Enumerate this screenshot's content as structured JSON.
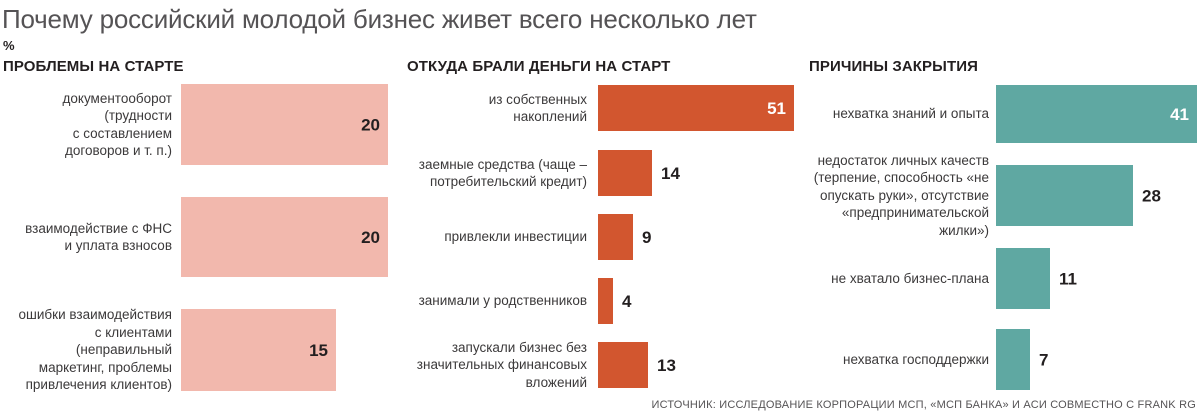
{
  "title": "Почему российский молодой бизнес живет всего несколько лет",
  "unit": "%",
  "source": "ИСТОЧНИК: ИССЛЕДОВАНИЕ КОРПОРАЦИИ МСП, «МСП БАНКА» И АСИ СОВМЕСТНО С FRANK RG",
  "colors": {
    "pink": "#f2b8ad",
    "orange": "#d2562f",
    "teal": "#5fa8a2",
    "text": "#231f20"
  },
  "chart_data": [
    {
      "type": "bar",
      "orientation": "horizontal",
      "title": "ПРОБЛЕМЫ НА СТАРТЕ",
      "categories": [
        [
          "документооборот",
          "(трудности",
          "с составлением",
          "договоров и т. п.)"
        ],
        [
          "взаимодействие с ФНС",
          "и уплата взносов"
        ],
        [
          "ошибки взаимодействия",
          "с клиентами",
          "(неправильный",
          "маркетинг, проблемы",
          "привлечения клиентов)"
        ]
      ],
      "values": [
        20,
        20,
        15
      ],
      "xlabel": "",
      "ylabel": "",
      "xlim": [
        0,
        20
      ],
      "grid": false,
      "color": "pink"
    },
    {
      "type": "bar",
      "orientation": "horizontal",
      "title": "ОТКУДА БРАЛИ ДЕНЬГИ НА СТАРТ",
      "categories": [
        [
          "из собственных",
          "накоплений"
        ],
        [
          "заемные средства (чаще –",
          "потребительский кредит)"
        ],
        [
          "привлекли инвестиции"
        ],
        [
          "занимали у родственников"
        ],
        [
          "запускали бизнес без",
          "значительных финансовых",
          "вложений"
        ]
      ],
      "values": [
        51,
        14,
        9,
        4,
        13
      ],
      "xlabel": "",
      "ylabel": "",
      "xlim": [
        0,
        51
      ],
      "grid": false,
      "color": "orange"
    },
    {
      "type": "bar",
      "orientation": "horizontal",
      "title": "ПРИЧИНЫ ЗАКРЫТИЯ",
      "categories": [
        [
          "нехватка знаний и опыта"
        ],
        [
          "недостаток личных качеств",
          "(терпение, способность «не",
          "опускать руки», отсутствие",
          "«предпринимательской",
          "жилки»)"
        ],
        [
          "не хватало бизнес-плана"
        ],
        [
          "нехватка господдержки"
        ]
      ],
      "values": [
        41,
        28,
        11,
        7
      ],
      "xlabel": "",
      "ylabel": "",
      "xlim": [
        0,
        41
      ],
      "grid": false,
      "color": "teal"
    }
  ]
}
